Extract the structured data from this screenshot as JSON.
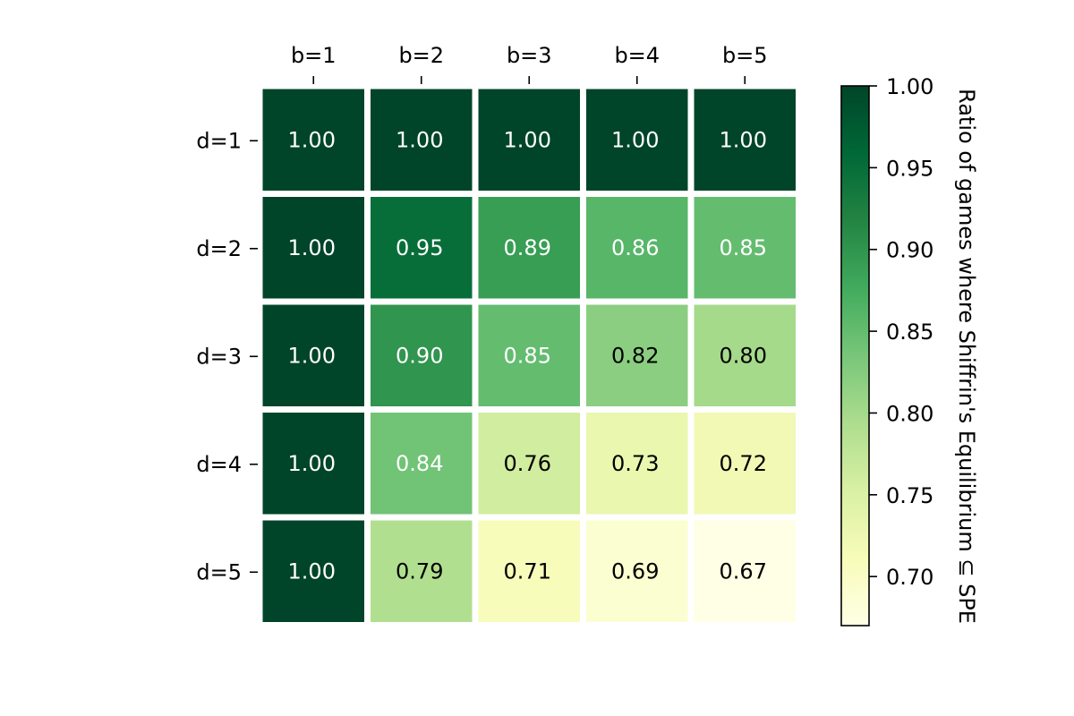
{
  "chart_data": {
    "type": "heatmap",
    "columns": [
      "b=1",
      "b=2",
      "b=3",
      "b=4",
      "b=5"
    ],
    "rows": [
      "d=1",
      "d=2",
      "d=3",
      "d=4",
      "d=5"
    ],
    "values": [
      [
        1.0,
        1.0,
        1.0,
        1.0,
        1.0
      ],
      [
        1.0,
        0.95,
        0.89,
        0.86,
        0.85
      ],
      [
        1.0,
        0.9,
        0.85,
        0.82,
        0.8
      ],
      [
        1.0,
        0.84,
        0.76,
        0.73,
        0.72
      ],
      [
        1.0,
        0.79,
        0.71,
        0.69,
        0.67
      ]
    ],
    "cell_labels": [
      [
        "1.00",
        "1.00",
        "1.00",
        "1.00",
        "1.00"
      ],
      [
        "1.00",
        "0.95",
        "0.89",
        "0.86",
        "0.85"
      ],
      [
        "1.00",
        "0.90",
        "0.85",
        "0.82",
        "0.80"
      ],
      [
        "1.00",
        "0.84",
        "0.76",
        "0.73",
        "0.72"
      ],
      [
        "1.00",
        "0.79",
        "0.71",
        "0.69",
        "0.67"
      ]
    ],
    "colormap": "YlGn",
    "colorbar": {
      "label": "Ratio of games where Shiffrin's Equilibrium ⊆ SPE",
      "range": [
        0.67,
        1.0
      ],
      "ticks": [
        0.7,
        0.75,
        0.8,
        0.85,
        0.9,
        0.95,
        1.0
      ],
      "tick_labels": [
        "0.70",
        "0.75",
        "0.80",
        "0.85",
        "0.90",
        "0.95",
        "1.00"
      ]
    },
    "x_ticks_position": "top",
    "text_color_dark": "#000000",
    "text_color_light": "#ffffff",
    "grid_color": "#ffffff"
  }
}
